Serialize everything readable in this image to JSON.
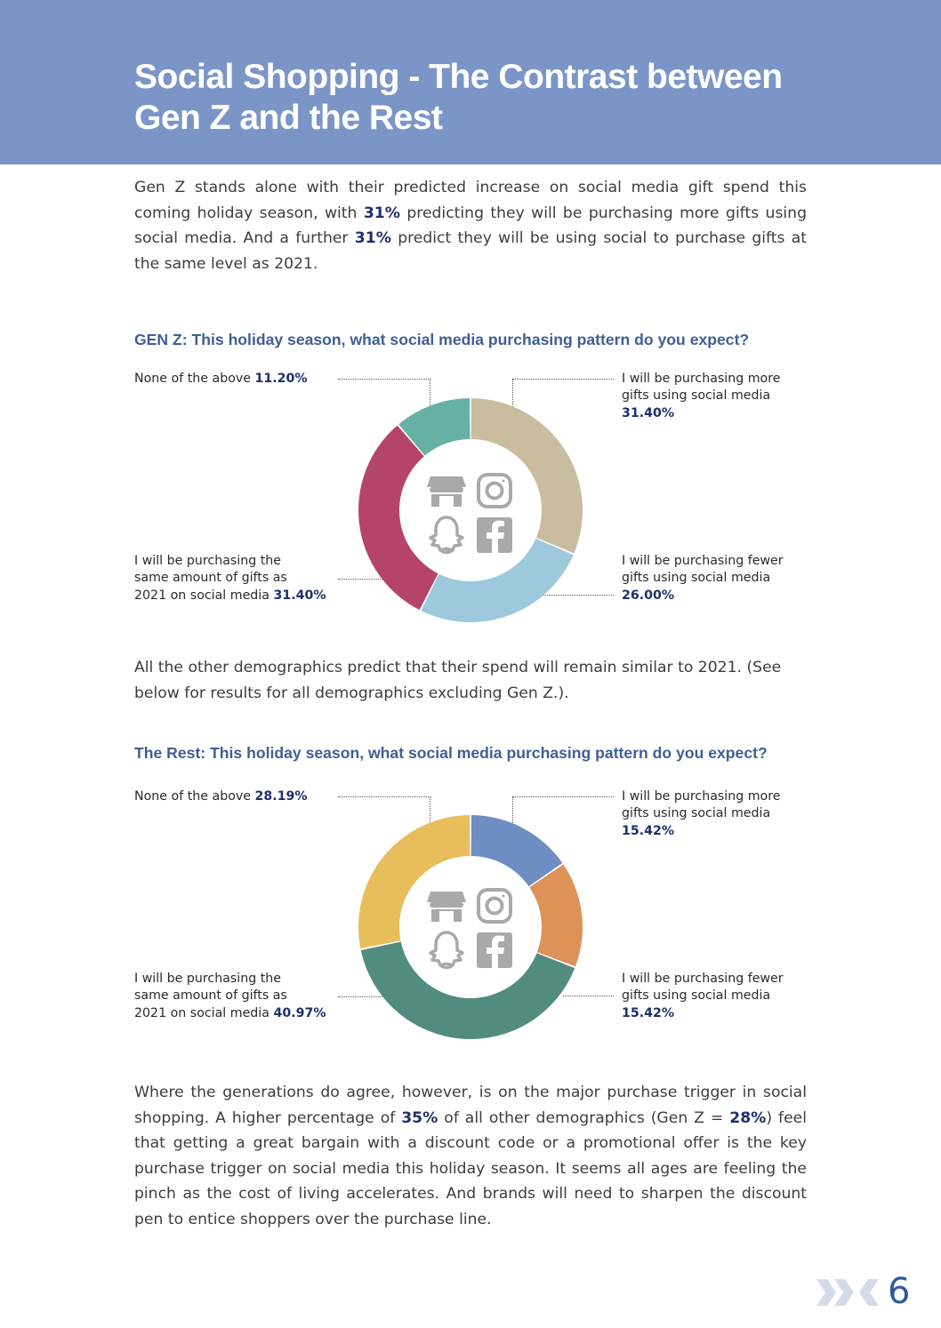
{
  "header": {
    "title_line1": "Social Shopping - The Contrast between",
    "title_line2": "Gen Z and the Rest"
  },
  "intro": {
    "t1": "Gen Z stands alone with their predicted increase on social media gift spend this coming holiday season, with ",
    "b1": "31%",
    "t2": " predicting they will be purchasing more gifts using social media.  And a further ",
    "b2": "31%",
    "t3": " predict they will be using social to purchase gifts at the same level as 2021."
  },
  "middle": {
    "text": "All the other demographics predict that their spend will remain similar to 2021. (See below for results for all demographics excluding Gen Z.)."
  },
  "closing": {
    "t1": "Where the generations do agree, however, is on the major purchase trigger in social shopping. A higher percentage of ",
    "b1": "35%",
    "t2": " of all other demographics (Gen Z = ",
    "b2": "28%",
    "t3": ") feel that getting a great bargain with a discount code or a promotional offer is the key purchase trigger on social media this holiday season. It seems all ages are feeling the pinch as the cost of living accelerates. And brands will need to sharpen the discount pen to entice shoppers over the purchase line."
  },
  "page_number": "6",
  "chart_data": [
    {
      "type": "pie",
      "title": "GEN Z: This holiday season, what social media purchasing pattern do you expect?",
      "series": [
        {
          "name": "I will be purchasing more gifts using social media",
          "value": 31.4,
          "value_label": "31.40%",
          "color": "#c9bc9f"
        },
        {
          "name": "I will be purchasing fewer gifts using social media",
          "value": 26.0,
          "value_label": "26.00%",
          "color": "#9ec9dc"
        },
        {
          "name": "I will be purchasing the same amount of gifts as 2021 on social media",
          "value": 31.4,
          "value_label": "31.40%",
          "color": "#b5446b"
        },
        {
          "name": "None of the above",
          "value": 11.2,
          "value_label": "11.20%",
          "color": "#67b0a5"
        }
      ],
      "labels": {
        "more_l1": "I will be purchasing more",
        "more_l2": "gifts using social media",
        "fewer_l1": "I will be purchasing fewer",
        "fewer_l2": "gifts using social media",
        "same_l1": "I will be purchasing the",
        "same_l2": "same amount of gifts as",
        "same_l3": "2021 on social media",
        "none_l1": "None of the above"
      }
    },
    {
      "type": "pie",
      "title": "The Rest: This holiday season, what social media purchasing pattern do you expect?",
      "series": [
        {
          "name": "I will be purchasing more gifts using social media",
          "value": 15.42,
          "value_label": "15.42%",
          "color": "#6e8dc2"
        },
        {
          "name": "I will be purchasing fewer gifts using social media",
          "value": 15.42,
          "value_label": "15.42%",
          "color": "#dd9257"
        },
        {
          "name": "I will be purchasing the same amount of gifts as 2021 on social media",
          "value": 40.97,
          "value_label": "40.97%",
          "color": "#528c7f"
        },
        {
          "name": "None of the above",
          "value": 28.19,
          "value_label": "28.19%",
          "color": "#e8bd5c"
        }
      ],
      "labels": {
        "more_l1": "I will be purchasing more",
        "more_l2": "gifts using social media",
        "fewer_l1": "I will be purchasing fewer",
        "fewer_l2": "gifts using social media",
        "same_l1": "I will be purchasing the",
        "same_l2": "same amount of gifts as",
        "same_l3": "2021 on social media",
        "none_l1": "None of the above"
      }
    }
  ],
  "icons": [
    "storefront-icon",
    "instagram-icon",
    "snapchat-icon",
    "facebook-icon",
    "brand-logo-icon"
  ]
}
